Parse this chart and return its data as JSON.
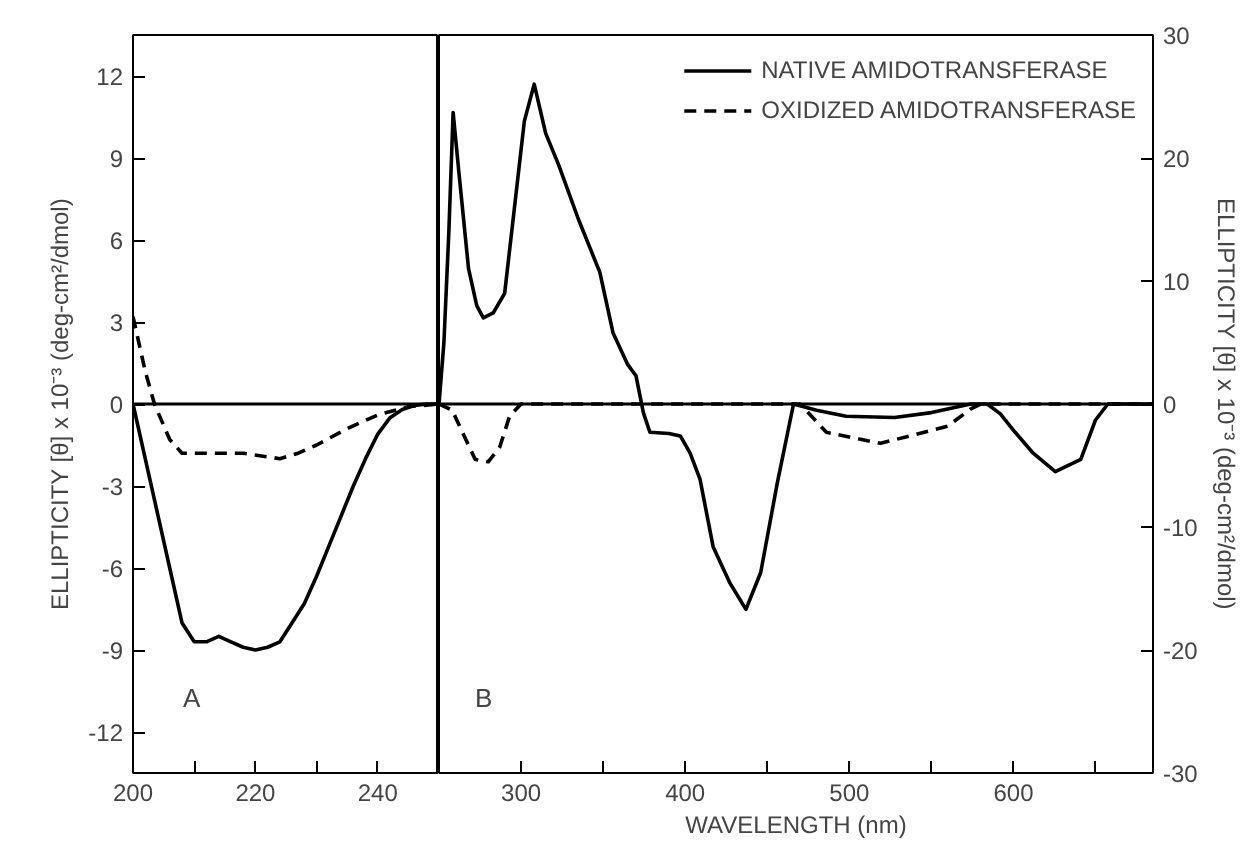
{
  "chart_data": [
    {
      "type": "line",
      "xlim": [
        200,
        250
      ],
      "ylim": [
        -13.5,
        13.5
      ],
      "xticks": [
        200,
        {
          "value": 210,
          "label": null
        },
        220,
        {
          "value": 230,
          "label": null
        },
        240
      ],
      "yticks": [
        -12,
        -9,
        -6,
        -3,
        0,
        3,
        6,
        9,
        12
      ],
      "ylabel": "ELLIPTICITY [θ] x 10⁻³ (deg-cm²/dmol)",
      "grid": false,
      "legend": false,
      "annotations": [
        "A"
      ],
      "ref_lines": [
        {
          "axis": "y",
          "value": 0,
          "color": "#000000",
          "line_style": "solid"
        }
      ],
      "series": [
        {
          "color": "#000000",
          "line_style": "solid",
          "x": [
            200,
            202,
            204,
            206,
            208,
            210,
            212,
            214,
            216,
            218,
            220,
            222,
            224,
            226,
            228,
            230,
            232,
            234,
            236,
            238,
            240,
            242,
            244,
            246,
            248,
            250
          ],
          "values": [
            0,
            -2,
            -4,
            -6,
            -8,
            -8.7,
            -8.7,
            -8.5,
            -8.7,
            -8.9,
            -9,
            -8.9,
            -8.7,
            -8,
            -7.3,
            -6.3,
            -5.2,
            -4.1,
            -3,
            -2,
            -1.1,
            -0.5,
            -0.2,
            -0.05,
            0,
            0
          ]
        },
        {
          "color": "#000000",
          "line_style": "dashed",
          "x": [
            200,
            202,
            203.5,
            206,
            208,
            212,
            218,
            224,
            227,
            230,
            235,
            240,
            245,
            250
          ],
          "values": [
            3.2,
            1.2,
            0,
            -1.3,
            -1.8,
            -1.8,
            -1.8,
            -2,
            -1.8,
            -1.5,
            -0.9,
            -0.4,
            -0.1,
            0
          ]
        }
      ]
    },
    {
      "type": "line",
      "xlim": [
        250,
        685
      ],
      "y2lim": [
        -30,
        30
      ],
      "xticks": [
        {
          "value": 250,
          "label": null
        },
        300,
        {
          "value": 350,
          "label": null
        },
        400,
        {
          "value": 450,
          "label": null
        },
        500,
        {
          "value": 550,
          "label": null
        },
        600,
        {
          "value": 650,
          "label": null
        }
      ],
      "y2ticks": [
        -30,
        -20,
        {
          "value": -10,
          "label": "-10"
        },
        0,
        10,
        20,
        30
      ],
      "xlabel": "WAVELENGTH (nm)",
      "y2label": "ELLIPTICITY [θ] x 10⁻³ (deg-cm²/dmol)",
      "grid": false,
      "legend": "top right",
      "annotations": [
        "B"
      ],
      "ref_lines": [
        {
          "axis": "y2",
          "value": 0,
          "color": "#000000",
          "line_style": "solid"
        }
      ],
      "series": [
        {
          "name": "NATIVE AMIDOTRANSFERASE",
          "color": "#000000",
          "line_style": "solid",
          "axis": "y2",
          "x": [
            250,
            253,
            256,
            258.6,
            262,
            268,
            273,
            277,
            283,
            290,
            296,
            302,
            308,
            315,
            323,
            335,
            348,
            356,
            365,
            370,
            374.5,
            378.5,
            390,
            397,
            403,
            409,
            417,
            427,
            437,
            446,
            456,
            466,
            480,
            498,
            527.5,
            550,
            574,
            584,
            592,
            601,
            612,
            625.5,
            641,
            650,
            657.5,
            670,
            685
          ],
          "values": [
            0,
            5,
            14,
            23.7,
            19,
            11,
            8,
            7,
            7.4,
            9,
            16,
            23,
            26,
            22,
            19.4,
            15,
            10.7,
            5.8,
            3.2,
            2.3,
            -0.7,
            -2.3,
            -2.4,
            -2.6,
            -4,
            -6.1,
            -11.6,
            -14.5,
            -16.7,
            -13.7,
            -6.5,
            0,
            -0.5,
            -1,
            -1.1,
            -0.7,
            0,
            0,
            -0.8,
            -2.3,
            -4,
            -5.5,
            -4.5,
            -1.3,
            0,
            0,
            0
          ]
        },
        {
          "name": "OXIDIZED AMIDOTRANSFERASE",
          "color": "#000000",
          "line_style": "dashed",
          "axis": "y2",
          "x": [
            250,
            258,
            265,
            272,
            280,
            287,
            293,
            300,
            470,
            486,
            519,
            560,
            574,
            580,
            685
          ],
          "values": [
            0,
            -0.5,
            -2.5,
            -4.5,
            -4.7,
            -3.5,
            -1,
            0,
            0,
            -2.3,
            -3.2,
            -1.8,
            -0.4,
            0,
            0
          ]
        }
      ]
    }
  ]
}
